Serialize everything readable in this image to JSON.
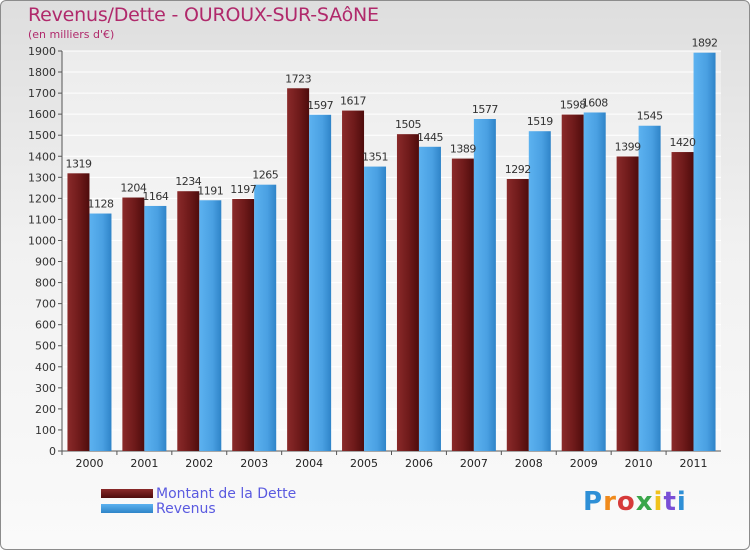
{
  "header": {
    "title": "Revenus/Dette - OUROUX-SUR-SAôNE",
    "subtitle": "(en milliers d'€)"
  },
  "colors": {
    "debt": "#7a1e1e",
    "revenue": "#4aa3e6",
    "title": "#b0296b",
    "legend_text": "#5a5ae0"
  },
  "legend": {
    "debt_label": "Montant de la Dette",
    "revenue_label": "Revenus"
  },
  "logo": {
    "text": "Proxiti"
  },
  "chart_data": {
    "type": "bar",
    "title": "Revenus/Dette - OUROUX-SUR-SAôNE",
    "subtitle": "(en milliers d'€)",
    "categories": [
      "2000",
      "2001",
      "2002",
      "2003",
      "2004",
      "2005",
      "2006",
      "2007",
      "2008",
      "2009",
      "2010",
      "2011"
    ],
    "series": [
      {
        "name": "Montant de la Dette",
        "values": [
          1319,
          1204,
          1234,
          1197,
          1723,
          1617,
          1505,
          1389,
          1292,
          1598,
          1399,
          1420
        ]
      },
      {
        "name": "Revenus",
        "values": [
          1128,
          1164,
          1191,
          1265,
          1597,
          1351,
          1445,
          1577,
          1519,
          1608,
          1545,
          1892
        ]
      }
    ],
    "ylim": [
      0,
      1900
    ],
    "ytick_step": 100,
    "grid": true,
    "xlabel": "",
    "ylabel": "",
    "legend_position": "bottom-left"
  }
}
